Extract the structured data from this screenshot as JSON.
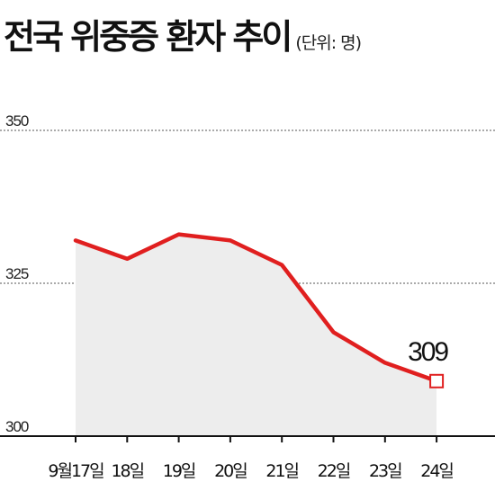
{
  "title": "전국 위중증 환자 추이",
  "unit": "(단위: 명)",
  "colors": {
    "line": "#e01f1f",
    "area": "#ededed",
    "grid": "#555555",
    "axis": "#111111"
  },
  "chart_data": {
    "type": "area",
    "title": "전국 위중증 환자 추이",
    "unit": "(단위: 명)",
    "categories": [
      "9월17일",
      "18일",
      "19일",
      "20일",
      "21일",
      "22일",
      "23일",
      "24일"
    ],
    "series": [
      {
        "values": [
          332,
          329,
          333,
          332,
          328,
          317,
          312,
          309
        ]
      }
    ],
    "ylim": [
      300,
      350
    ],
    "yticks": [
      300,
      325,
      350
    ],
    "gridlines": [
      325,
      350
    ],
    "annotations": [
      {
        "category": "24일",
        "value": 309,
        "label": "309"
      }
    ]
  }
}
